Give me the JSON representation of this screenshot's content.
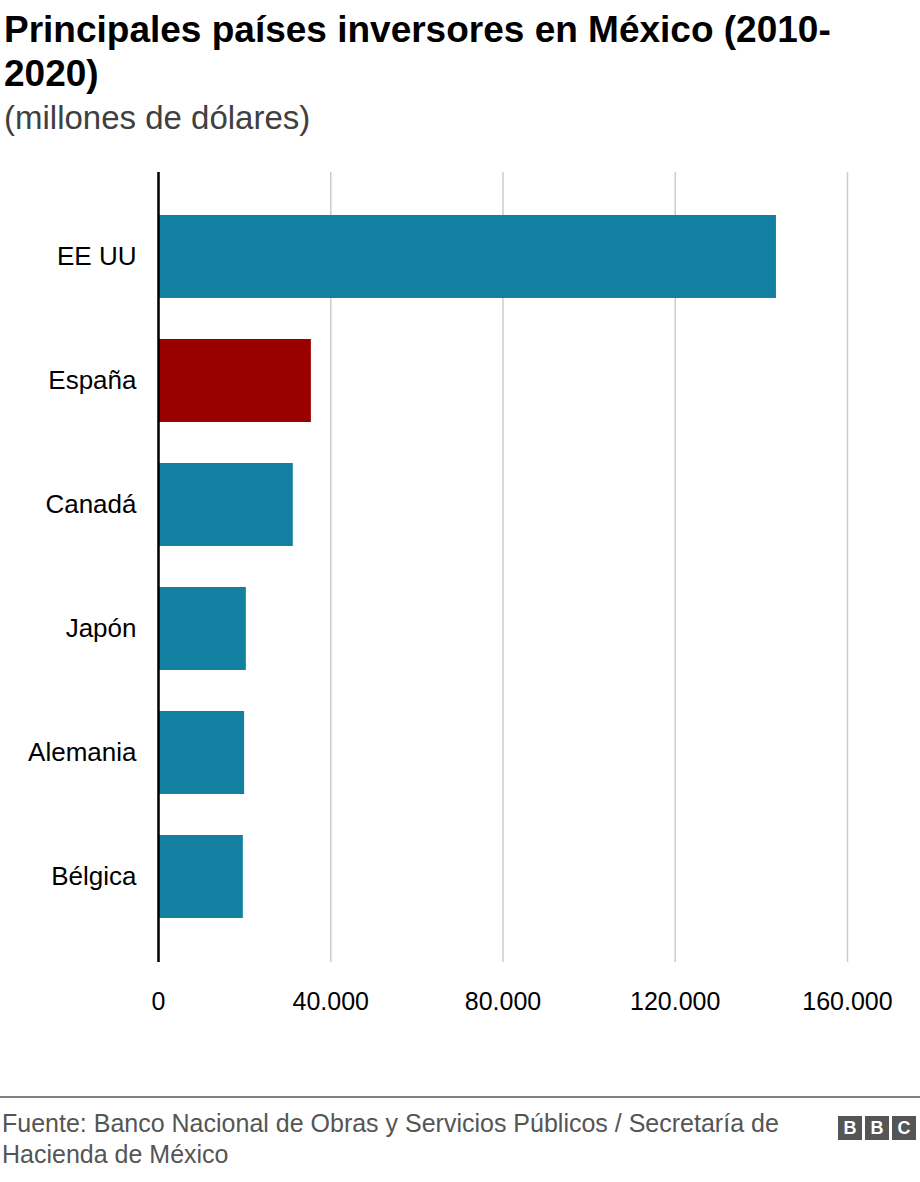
{
  "chart_data": {
    "type": "bar",
    "orientation": "horizontal",
    "title": "Principales países inversores en México (2010-2020)",
    "subtitle": "(millones de dólares)",
    "categories": [
      "EE UU",
      "España",
      "Canadá",
      "Japón",
      "Alemania",
      "Bélgica"
    ],
    "values": [
      143500,
      35500,
      31300,
      20400,
      20000,
      19700
    ],
    "colors": [
      "#1380a1",
      "#990000",
      "#1380a1",
      "#1380a1",
      "#1380a1",
      "#1380a1"
    ],
    "xlim": [
      0,
      160000
    ],
    "xticks": [
      0,
      {
        "value": 40000,
        "label": "40.000"
      },
      {
        "value": 80000,
        "label": "80.000"
      },
      {
        "value": 120000,
        "label": "120.000"
      },
      {
        "value": 160000,
        "label": "160.000"
      }
    ],
    "grid": true,
    "source": "Fuente: Banco Nacional de Obras y Servicios Públicos / Secretaría de Hacienda de México",
    "logo": "BBC"
  }
}
